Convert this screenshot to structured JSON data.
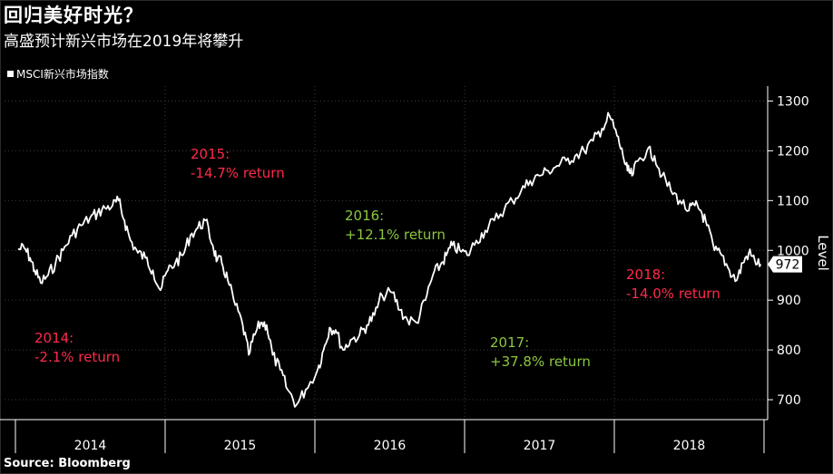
{
  "header": {
    "title": "回归美好时光？",
    "subtitle": "高盛预计新兴市场在2019年将攀升"
  },
  "legend": {
    "label": "MSCI新兴市场指数",
    "color": "#ffffff"
  },
  "source": "Source: Bloomberg",
  "colors": {
    "negative": "#ff2a4a",
    "positive": "#8cc63f",
    "line": "#ffffff",
    "grid": "#3c3c3c"
  },
  "chart_data": {
    "type": "line",
    "title": "回归美好时光？",
    "subtitle": "高盛预计新兴市场在2019年将攀升",
    "ylabel": "Level",
    "xlabel": "",
    "ylim": [
      660,
      1330
    ],
    "y_ticks": [
      700,
      800,
      900,
      1000,
      1100,
      1200,
      1300
    ],
    "x_categories": [
      "2014",
      "2015",
      "2016",
      "2017",
      "2018"
    ],
    "grid": true,
    "legend_position": "top-left",
    "last_value_label": "972",
    "series": [
      {
        "name": "MSCI新兴市场指数",
        "x": [
          2014.0,
          2014.04,
          2014.08,
          2014.11,
          2014.15,
          2014.2,
          2014.25,
          2014.3,
          2014.36,
          2014.42,
          2014.48,
          2014.53,
          2014.58,
          2014.63,
          2014.67,
          2014.71,
          2014.75,
          2014.8,
          2014.85,
          2014.9,
          2014.95,
          2015.0,
          2015.05,
          2015.1,
          2015.15,
          2015.2,
          2015.25,
          2015.3,
          2015.33,
          2015.36,
          2015.4,
          2015.45,
          2015.5,
          2015.54,
          2015.58,
          2015.62,
          2015.66,
          2015.7,
          2015.75,
          2015.8,
          2015.86,
          2015.92,
          2016.0,
          2016.04,
          2016.08,
          2016.12,
          2016.17,
          2016.22,
          2016.28,
          2016.33,
          2016.38,
          2016.43,
          2016.5,
          2016.55,
          2016.6,
          2016.66,
          2016.72,
          2016.77,
          2016.82,
          2016.86,
          2016.9,
          2016.95,
          2017.0,
          2017.06,
          2017.12,
          2017.18,
          2017.25,
          2017.3,
          2017.36,
          2017.42,
          2017.48,
          2017.54,
          2017.6,
          2017.66,
          2017.72,
          2017.78,
          2017.84,
          2017.9,
          2017.95,
          2018.0,
          2018.04,
          2018.07,
          2018.1,
          2018.14,
          2018.2,
          2018.25,
          2018.3,
          2018.36,
          2018.42,
          2018.48,
          2018.52,
          2018.56,
          2018.6,
          2018.65,
          2018.7,
          2018.75,
          2018.8,
          2018.84,
          2018.88,
          2018.92,
          2018.96
        ],
        "values": [
          1002,
          1005,
          985,
          960,
          935,
          950,
          975,
          1000,
          1030,
          1050,
          1065,
          1075,
          1085,
          1090,
          1100,
          1060,
          1020,
          995,
          985,
          960,
          920,
          960,
          975,
          990,
          1030,
          1045,
          1060,
          1010,
          980,
          975,
          940,
          890,
          850,
          790,
          830,
          855,
          850,
          790,
          760,
          720,
          690,
          720,
          760,
          800,
          845,
          840,
          800,
          820,
          830,
          850,
          870,
          910,
          915,
          880,
          860,
          855,
          900,
          950,
          970,
          990,
          1010,
          1000,
          990,
          1020,
          1040,
          1060,
          1085,
          1100,
          1120,
          1140,
          1150,
          1160,
          1170,
          1180,
          1190,
          1200,
          1220,
          1245,
          1270,
          1230,
          1190,
          1160,
          1150,
          1180,
          1200,
          1190,
          1150,
          1120,
          1100,
          1080,
          1090,
          1080,
          1050,
          1000,
          990,
          960,
          940,
          975,
          995,
          980,
          972
        ]
      }
    ],
    "annotations": [
      {
        "year": "2014",
        "text": "2014:",
        "value": "-2.1% return",
        "sign": "negative"
      },
      {
        "year": "2015",
        "text": "2015:",
        "value": "-14.7% return",
        "sign": "negative"
      },
      {
        "year": "2016",
        "text": "2016:",
        "value": "+12.1% return",
        "sign": "positive"
      },
      {
        "year": "2017",
        "text": "2017:",
        "value": "+37.8% return",
        "sign": "positive"
      },
      {
        "year": "2018",
        "text": "2018:",
        "value": "-14.0% return",
        "sign": "negative"
      }
    ]
  }
}
